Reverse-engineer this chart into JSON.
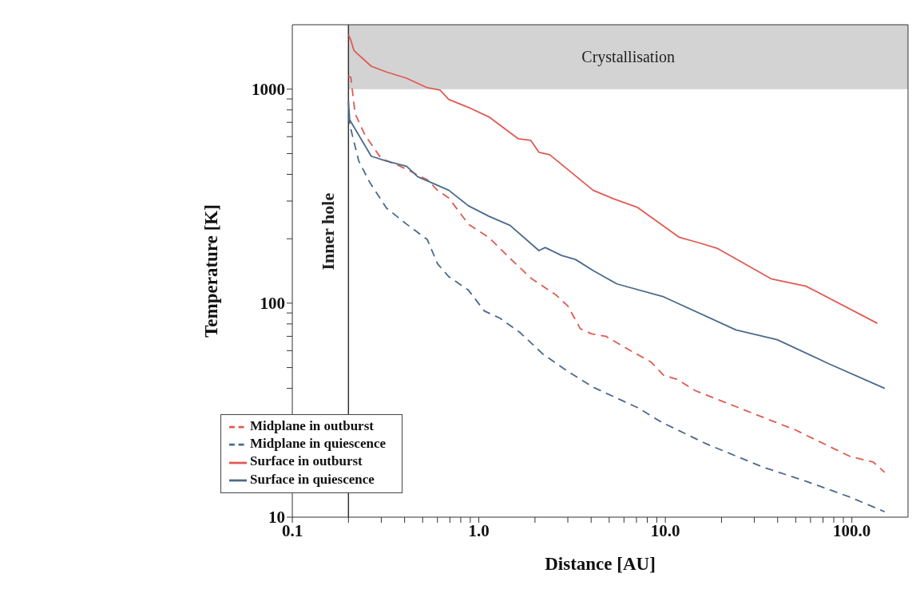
{
  "chart_data": {
    "type": "line",
    "xlabel": "Distance [AU]",
    "ylabel": "Temperature [K]",
    "log": "xy",
    "xlim": [
      0.1,
      200
    ],
    "ylim": [
      10,
      2000
    ],
    "xticks": [
      {
        "value": 0.1,
        "label": "0.1"
      },
      {
        "value": 0.2,
        "label": null
      },
      {
        "value": 0.3,
        "label": null
      },
      {
        "value": 0.4,
        "label": null
      },
      {
        "value": 0.5,
        "label": null
      },
      {
        "value": 0.6,
        "label": null
      },
      {
        "value": 0.7,
        "label": null
      },
      {
        "value": 0.8,
        "label": null
      },
      {
        "value": 0.9,
        "label": null
      },
      {
        "value": 1,
        "label": "1.0"
      },
      {
        "value": 2,
        "label": null
      },
      {
        "value": 3,
        "label": null
      },
      {
        "value": 4,
        "label": null
      },
      {
        "value": 5,
        "label": null
      },
      {
        "value": 6,
        "label": null
      },
      {
        "value": 7,
        "label": null
      },
      {
        "value": 8,
        "label": null
      },
      {
        "value": 9,
        "label": null
      },
      {
        "value": 10,
        "label": "10.0"
      },
      {
        "value": 20,
        "label": null
      },
      {
        "value": 30,
        "label": null
      },
      {
        "value": 40,
        "label": null
      },
      {
        "value": 50,
        "label": null
      },
      {
        "value": 60,
        "label": null
      },
      {
        "value": 70,
        "label": null
      },
      {
        "value": 80,
        "label": null
      },
      {
        "value": 90,
        "label": null
      },
      {
        "value": 100,
        "label": "100.0"
      }
    ],
    "yticks": [
      10,
      {
        "value": 20,
        "label": null
      },
      {
        "value": 30,
        "label": null
      },
      {
        "value": 40,
        "label": null
      },
      {
        "value": 50,
        "label": null
      },
      {
        "value": 60,
        "label": null
      },
      {
        "value": 70,
        "label": null
      },
      {
        "value": 80,
        "label": null
      },
      {
        "value": 90,
        "label": null
      },
      100,
      {
        "value": 200,
        "label": null
      },
      {
        "value": 300,
        "label": null
      },
      {
        "value": 400,
        "label": null
      },
      {
        "value": 500,
        "label": null
      },
      {
        "value": 600,
        "label": null
      },
      {
        "value": 700,
        "label": null
      },
      {
        "value": 800,
        "label": null
      },
      {
        "value": 900,
        "label": null
      },
      1000
    ],
    "grid": false,
    "legend": "bottom left",
    "marker": "none",
    "series": [
      {
        "name": "Surface in outburst",
        "color": "#e05a52",
        "line_style": "solid",
        "x": [
          0.2,
          0.206,
          0.214,
          0.265,
          0.318,
          0.41,
          0.53,
          0.62,
          0.69,
          0.88,
          1.13,
          1.63,
          1.9,
          2.1,
          2.4,
          4.1,
          5.25,
          7.1,
          11.9,
          15.3,
          19.1,
          36.9,
          56.8,
          137
        ],
        "values": [
          1800,
          1690,
          1515,
          1280,
          1205,
          1125,
          1015,
          990,
          895,
          822,
          743,
          586,
          576,
          507,
          494,
          337,
          308,
          280,
          203,
          191,
          180,
          130,
          120,
          80.5
        ]
      },
      {
        "name": "Midplane in outburst",
        "color": "#e05a52",
        "line_style": "dashed",
        "x": [
          0.2,
          0.206,
          0.217,
          0.245,
          0.3,
          0.38,
          0.53,
          0.6,
          0.69,
          0.88,
          1.13,
          1.47,
          1.9,
          2.6,
          3.0,
          3.5,
          4.0,
          4.8,
          6.3,
          8.4,
          9.8,
          11.6,
          14.5,
          33,
          49.6,
          98,
          130,
          150
        ],
        "values": [
          1150,
          1135,
          770,
          611,
          474,
          436,
          377,
          337,
          310,
          234,
          203,
          162,
          131,
          109,
          97,
          76,
          72,
          70,
          61,
          53,
          46,
          44,
          39,
          29.4,
          25.6,
          19.2,
          18.1,
          16.2
        ]
      },
      {
        "name": "Surface in quiescence",
        "color": "#4a6a8c",
        "line_style": "solid",
        "x": [
          0.2,
          0.203,
          0.265,
          0.318,
          0.41,
          0.47,
          0.69,
          0.88,
          1.13,
          1.47,
          2.1,
          2.27,
          2.78,
          3.3,
          4.1,
          5.5,
          9.8,
          23.9,
          39.8,
          75.6,
          150
        ],
        "values": [
          880,
          720,
          486,
          462,
          436,
          390,
          337,
          285,
          255,
          231,
          176,
          182,
          167,
          160,
          142,
          123,
          107,
          75,
          67.5,
          52,
          40
        ]
      },
      {
        "name": "Midplane in quiescence",
        "color": "#4a6a8c",
        "line_style": "dashed",
        "x": [
          0.2,
          0.206,
          0.227,
          0.26,
          0.32,
          0.41,
          0.53,
          0.6,
          0.69,
          0.88,
          1.07,
          1.3,
          1.66,
          2.2,
          3.0,
          4.1,
          4.8,
          7.1,
          9.6,
          16.6,
          33,
          57,
          98,
          150
        ],
        "values": [
          750,
          650,
          462,
          367,
          278,
          234,
          198,
          153,
          133,
          115,
          92,
          85,
          73,
          58,
          48,
          40.5,
          38,
          32.5,
          27.7,
          22,
          17.2,
          14.7,
          12.4,
          10.6
        ]
      }
    ],
    "ref_lines": [
      {
        "axis": "x",
        "value": 0.2,
        "label": "Inner hole",
        "color": "#333333"
      }
    ],
    "bands": [
      {
        "axis": "y",
        "from": 1000,
        "to": 2000,
        "label": "Crystallisation",
        "color": "#d3d3d3"
      }
    ]
  }
}
